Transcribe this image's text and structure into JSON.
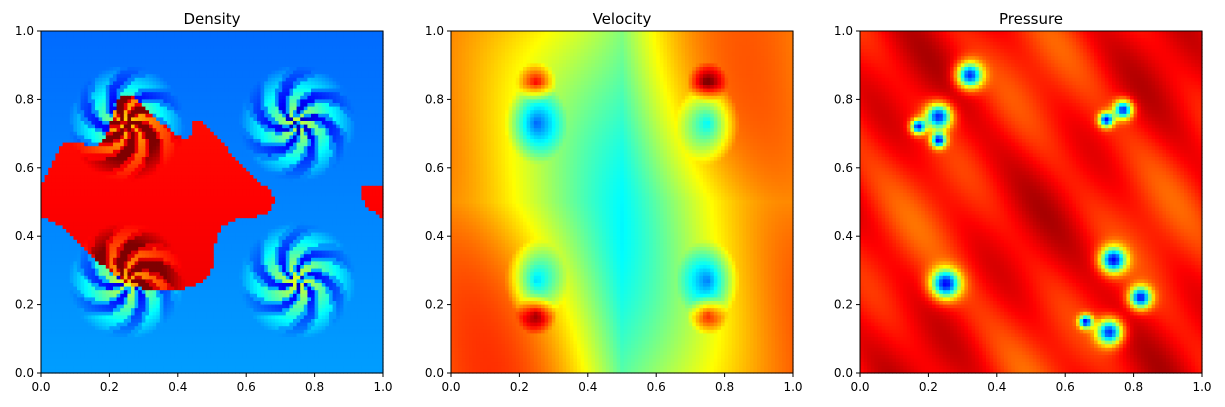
{
  "chart_data": [
    {
      "type": "heatmap",
      "title": "Density",
      "colormap": "jet",
      "field": "density",
      "xlim": [
        0,
        1
      ],
      "ylim": [
        0,
        1
      ],
      "xticks": [
        "0.0",
        "0.2",
        "0.4",
        "0.6",
        "0.8",
        "1.0"
      ],
      "yticks": [
        "0.0",
        "0.2",
        "0.4",
        "0.6",
        "0.8",
        "1.0"
      ],
      "grid": false
    },
    {
      "type": "heatmap",
      "title": "Velocity",
      "colormap": "jet",
      "field": "velocity",
      "xlim": [
        0,
        1
      ],
      "ylim": [
        0,
        1
      ],
      "xticks": [
        "0.0",
        "0.2",
        "0.4",
        "0.6",
        "0.8",
        "1.0"
      ],
      "yticks": [
        "0.0",
        "0.2",
        "0.4",
        "0.6",
        "0.8",
        "1.0"
      ],
      "grid": false
    },
    {
      "type": "heatmap",
      "title": "Pressure",
      "colormap": "jet",
      "field": "pressure",
      "xlim": [
        0,
        1
      ],
      "ylim": [
        0,
        1
      ],
      "xticks": [
        "0.0",
        "0.2",
        "0.4",
        "0.6",
        "0.8",
        "1.0"
      ],
      "yticks": [
        "0.0",
        "0.2",
        "0.4",
        "0.6",
        "0.8",
        "1.0"
      ],
      "grid": false
    }
  ]
}
